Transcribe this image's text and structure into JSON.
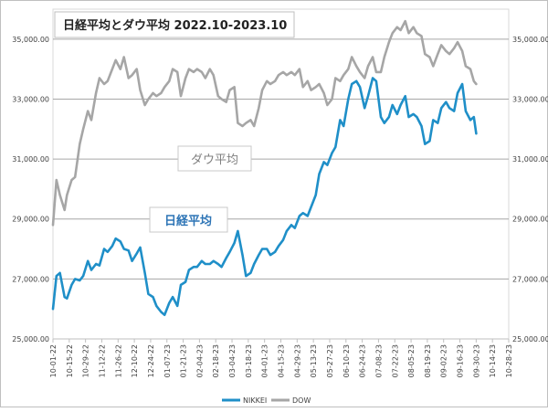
{
  "chart_data": {
    "type": "line",
    "title": "日経平均とダウ平均 2022.10-2023.10",
    "annotations": {
      "dow": "ダウ平均",
      "nikkei": "日経平均"
    },
    "ylim": [
      25000,
      36000
    ],
    "y_ticks": [
      "25,000.00",
      "27,000.00",
      "29,000.00",
      "31,000.00",
      "33,000.00",
      "35,000.00"
    ],
    "x_ticks": [
      "10-01-22",
      "10-15-22",
      "10-29-22",
      "11-12-22",
      "11-26-22",
      "12-10-22",
      "12-24-22",
      "01-07-23",
      "01-21-23",
      "02-04-23",
      "02-18-23",
      "03-04-23",
      "03-18-23",
      "04-01-23",
      "04-15-23",
      "04-29-23",
      "05-13-23",
      "05-27-23",
      "06-10-23",
      "06-24-23",
      "07-08-23",
      "07-22-23",
      "08-05-23",
      "08-19-23",
      "09-02-23",
      "09-16-23",
      "09-30-23",
      "10-14-23",
      "10-28-23"
    ],
    "legend_position": "bottom",
    "grid": true,
    "series": [
      {
        "name": "NIKKEI",
        "color": "#1f8fc8",
        "points": [
          [
            "10-01-22",
            26000
          ],
          [
            "10-04-22",
            27100
          ],
          [
            "10-07-22",
            27200
          ],
          [
            "10-11-22",
            26400
          ],
          [
            "10-13-22",
            26350
          ],
          [
            "10-17-22",
            26800
          ],
          [
            "10-20-22",
            27000
          ],
          [
            "10-24-22",
            26950
          ],
          [
            "10-27-22",
            27100
          ],
          [
            "10-31-22",
            27600
          ],
          [
            "11-03-22",
            27300
          ],
          [
            "11-07-22",
            27500
          ],
          [
            "11-10-22",
            27450
          ],
          [
            "11-14-22",
            28000
          ],
          [
            "11-17-22",
            27900
          ],
          [
            "11-21-22",
            28100
          ],
          [
            "11-24-22",
            28350
          ],
          [
            "11-28-22",
            28250
          ],
          [
            "12-01-22",
            28000
          ],
          [
            "12-05-22",
            27950
          ],
          [
            "12-08-22",
            27600
          ],
          [
            "12-12-22",
            27850
          ],
          [
            "12-15-22",
            28050
          ],
          [
            "12-19-22",
            27200
          ],
          [
            "12-22-22",
            26500
          ],
          [
            "12-26-22",
            26400
          ],
          [
            "12-29-22",
            26100
          ],
          [
            "01-02-23",
            25900
          ],
          [
            "01-05-23",
            25800
          ],
          [
            "01-09-23",
            26200
          ],
          [
            "01-12-23",
            26400
          ],
          [
            "01-16-23",
            26100
          ],
          [
            "01-19-23",
            26800
          ],
          [
            "01-23-23",
            26900
          ],
          [
            "01-26-23",
            27300
          ],
          [
            "01-30-23",
            27400
          ],
          [
            "02-02-23",
            27400
          ],
          [
            "02-06-23",
            27600
          ],
          [
            "02-09-23",
            27500
          ],
          [
            "02-13-23",
            27500
          ],
          [
            "02-16-23",
            27600
          ],
          [
            "02-20-23",
            27500
          ],
          [
            "02-23-23",
            27400
          ],
          [
            "02-27-23",
            27700
          ],
          [
            "03-02-23",
            27900
          ],
          [
            "03-06-23",
            28200
          ],
          [
            "03-09-23",
            28600
          ],
          [
            "03-13-23",
            27800
          ],
          [
            "03-16-23",
            27100
          ],
          [
            "03-20-23",
            27200
          ],
          [
            "03-23-23",
            27500
          ],
          [
            "03-27-23",
            27800
          ],
          [
            "03-30-23",
            28000
          ],
          [
            "04-03-23",
            28000
          ],
          [
            "04-06-23",
            27800
          ],
          [
            "04-10-23",
            27900
          ],
          [
            "04-13-23",
            28100
          ],
          [
            "04-17-23",
            28300
          ],
          [
            "04-20-23",
            28600
          ],
          [
            "04-24-23",
            28800
          ],
          [
            "04-27-23",
            28700
          ],
          [
            "05-01-23",
            29100
          ],
          [
            "05-04-23",
            29200
          ],
          [
            "05-08-23",
            29100
          ],
          [
            "05-11-23",
            29400
          ],
          [
            "05-15-23",
            29800
          ],
          [
            "05-18-23",
            30500
          ],
          [
            "05-22-23",
            30900
          ],
          [
            "05-25-23",
            30800
          ],
          [
            "05-29-23",
            31200
          ],
          [
            "06-01-23",
            31400
          ],
          [
            "06-05-23",
            32300
          ],
          [
            "06-08-23",
            32100
          ],
          [
            "06-12-23",
            33000
          ],
          [
            "06-15-23",
            33500
          ],
          [
            "06-19-23",
            33600
          ],
          [
            "06-22-23",
            33400
          ],
          [
            "06-26-23",
            32700
          ],
          [
            "06-29-23",
            33100
          ],
          [
            "07-03-23",
            33700
          ],
          [
            "07-06-23",
            33600
          ],
          [
            "07-10-23",
            32400
          ],
          [
            "07-13-23",
            32200
          ],
          [
            "07-17-23",
            32400
          ],
          [
            "07-20-23",
            32800
          ],
          [
            "07-24-23",
            32500
          ],
          [
            "07-27-23",
            32800
          ],
          [
            "07-31-23",
            33100
          ],
          [
            "08-03-23",
            32400
          ],
          [
            "08-07-23",
            32500
          ],
          [
            "08-10-23",
            32400
          ],
          [
            "08-14-23",
            32100
          ],
          [
            "08-17-23",
            31500
          ],
          [
            "08-21-23",
            31600
          ],
          [
            "08-24-23",
            32300
          ],
          [
            "08-28-23",
            32200
          ],
          [
            "08-31-23",
            32700
          ],
          [
            "09-04-23",
            32900
          ],
          [
            "09-07-23",
            32700
          ],
          [
            "09-11-23",
            32600
          ],
          [
            "09-14-23",
            33200
          ],
          [
            "09-18-23",
            33500
          ],
          [
            "09-21-23",
            32600
          ],
          [
            "09-25-23",
            32300
          ],
          [
            "09-28-23",
            32400
          ],
          [
            "09-30-23",
            31850
          ]
        ]
      },
      {
        "name": "DOW",
        "color": "#a6a6a6",
        "points": [
          [
            "10-01-22",
            28800
          ],
          [
            "10-04-22",
            30300
          ],
          [
            "10-07-22",
            29800
          ],
          [
            "10-11-22",
            29300
          ],
          [
            "10-13-22",
            29800
          ],
          [
            "10-17-22",
            30300
          ],
          [
            "10-20-22",
            30400
          ],
          [
            "10-24-22",
            31500
          ],
          [
            "10-27-22",
            32000
          ],
          [
            "10-31-22",
            32600
          ],
          [
            "11-03-22",
            32300
          ],
          [
            "11-07-22",
            33200
          ],
          [
            "11-10-22",
            33700
          ],
          [
            "11-14-22",
            33500
          ],
          [
            "11-17-22",
            33600
          ],
          [
            "11-21-22",
            34000
          ],
          [
            "11-24-22",
            34300
          ],
          [
            "11-28-22",
            34000
          ],
          [
            "12-01-22",
            34400
          ],
          [
            "12-05-22",
            33700
          ],
          [
            "12-08-22",
            33800
          ],
          [
            "12-12-22",
            34000
          ],
          [
            "12-15-22",
            33300
          ],
          [
            "12-19-22",
            32800
          ],
          [
            "12-22-22",
            33000
          ],
          [
            "12-26-22",
            33200
          ],
          [
            "12-29-22",
            33100
          ],
          [
            "01-02-23",
            33200
          ],
          [
            "01-05-23",
            33400
          ],
          [
            "01-09-23",
            33600
          ],
          [
            "01-12-23",
            34000
          ],
          [
            "01-16-23",
            33900
          ],
          [
            "01-19-23",
            33100
          ],
          [
            "01-23-23",
            33700
          ],
          [
            "01-26-23",
            34000
          ],
          [
            "01-30-23",
            33900
          ],
          [
            "02-02-23",
            34000
          ],
          [
            "02-06-23",
            33900
          ],
          [
            "02-09-23",
            33700
          ],
          [
            "02-13-23",
            34000
          ],
          [
            "02-16-23",
            33800
          ],
          [
            "02-20-23",
            33100
          ],
          [
            "02-23-23",
            33000
          ],
          [
            "02-27-23",
            32900
          ],
          [
            "03-02-23",
            33300
          ],
          [
            "03-06-23",
            33400
          ],
          [
            "03-09-23",
            32200
          ],
          [
            "03-13-23",
            32100
          ],
          [
            "03-16-23",
            32200
          ],
          [
            "03-20-23",
            32300
          ],
          [
            "03-23-23",
            32100
          ],
          [
            "03-27-23",
            32700
          ],
          [
            "03-30-23",
            33300
          ],
          [
            "04-03-23",
            33600
          ],
          [
            "04-06-23",
            33500
          ],
          [
            "04-10-23",
            33600
          ],
          [
            "04-13-23",
            33800
          ],
          [
            "04-17-23",
            33900
          ],
          [
            "04-20-23",
            33800
          ],
          [
            "04-24-23",
            33900
          ],
          [
            "04-27-23",
            33800
          ],
          [
            "05-01-23",
            34000
          ],
          [
            "05-04-23",
            33400
          ],
          [
            "05-08-23",
            33600
          ],
          [
            "05-11-23",
            33300
          ],
          [
            "05-15-23",
            33400
          ],
          [
            "05-18-23",
            33500
          ],
          [
            "05-22-23",
            33200
          ],
          [
            "05-25-23",
            32800
          ],
          [
            "05-29-23",
            33000
          ],
          [
            "06-01-23",
            33700
          ],
          [
            "06-05-23",
            33600
          ],
          [
            "06-08-23",
            33800
          ],
          [
            "06-12-23",
            34000
          ],
          [
            "06-15-23",
            34400
          ],
          [
            "06-19-23",
            34100
          ],
          [
            "06-22-23",
            33900
          ],
          [
            "06-26-23",
            33700
          ],
          [
            "06-29-23",
            34100
          ],
          [
            "07-03-23",
            34400
          ],
          [
            "07-06-23",
            33900
          ],
          [
            "07-10-23",
            33900
          ],
          [
            "07-13-23",
            34400
          ],
          [
            "07-17-23",
            34900
          ],
          [
            "07-20-23",
            35200
          ],
          [
            "07-24-23",
            35400
          ],
          [
            "07-27-23",
            35300
          ],
          [
            "07-31-23",
            35600
          ],
          [
            "08-03-23",
            35200
          ],
          [
            "08-07-23",
            35400
          ],
          [
            "08-10-23",
            35200
          ],
          [
            "08-14-23",
            35100
          ],
          [
            "08-17-23",
            34500
          ],
          [
            "08-21-23",
            34400
          ],
          [
            "08-24-23",
            34100
          ],
          [
            "08-28-23",
            34500
          ],
          [
            "08-31-23",
            34800
          ],
          [
            "09-04-23",
            34600
          ],
          [
            "09-07-23",
            34500
          ],
          [
            "09-11-23",
            34700
          ],
          [
            "09-14-23",
            34900
          ],
          [
            "09-18-23",
            34600
          ],
          [
            "09-21-23",
            34100
          ],
          [
            "09-25-23",
            34000
          ],
          [
            "09-28-23",
            33600
          ],
          [
            "09-30-23",
            33500
          ]
        ]
      }
    ]
  }
}
